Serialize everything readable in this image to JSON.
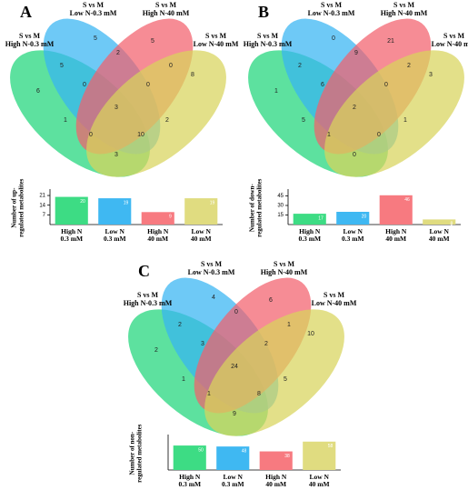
{
  "chart_data": [
    {
      "type": "venn",
      "title": "A",
      "sets": [
        "S vs M\nHigh N-0.3 mM",
        "S vs M\nLow N-0.3 mM",
        "S vs M\nHigh N-40 mM",
        "S vs M\nLow N-40 mM"
      ],
      "colors": [
        "#1ed67a",
        "#36b4f2",
        "#f2606c",
        "#d8d45c"
      ],
      "regions": [
        6,
        5,
        5,
        8,
        5,
        2,
        0,
        0,
        0,
        3,
        1,
        2,
        0,
        10,
        3
      ]
    },
    {
      "type": "bar",
      "ylabel": "Number of up-\nregulated metabolites",
      "categories": [
        "High N\n0.3 mM",
        "Low N\n0.3 mM",
        "High N\n40 mM",
        "Low N\n40 mM"
      ],
      "values": [
        20,
        19,
        9,
        19
      ],
      "colors": [
        "#3ddc84",
        "#3fb8f2",
        "#f77a80",
        "#e0dc80"
      ],
      "ylim": [
        0,
        23
      ],
      "yticks": [
        7,
        14,
        21
      ]
    },
    {
      "type": "venn",
      "title": "B",
      "sets": [
        "S vs M\nHigh N-0.3 mM",
        "S vs M\nLow N-0.3 mM",
        "S vs M\nHigh N-40 mM",
        "S vs M\nLow N-40 mM"
      ],
      "colors": [
        "#1ed67a",
        "#36b4f2",
        "#f2606c",
        "#d8d45c"
      ],
      "regions": [
        1,
        0,
        21,
        3,
        2,
        9,
        2,
        6,
        0,
        2,
        5,
        1,
        1,
        0,
        0
      ]
    },
    {
      "type": "bar",
      "ylabel": "Number of down-\nregulated metabolites",
      "categories": [
        "High N\n0.3 mM",
        "Low N\n0.3 mM",
        "High N\n40 mM",
        "Low N\n40 mM"
      ],
      "values": [
        17,
        20,
        46,
        8
      ],
      "colors": [
        "#3ddc84",
        "#3fb8f2",
        "#f77a80",
        "#e0dc80"
      ],
      "ylim": [
        0,
        50
      ],
      "yticks": [
        15,
        30,
        45
      ]
    },
    {
      "type": "venn",
      "title": "C",
      "sets": [
        "S vs M\nHigh N-0.3 mM",
        "S vs M\nLow N-0.3 mM",
        "S vs M\nHigh N-40 mM",
        "S vs M\nLow N-40 mM"
      ],
      "colors": [
        "#1ed67a",
        "#36b4f2",
        "#f2606c",
        "#d8d45c"
      ],
      "regions": [
        2,
        4,
        6,
        10,
        2,
        0,
        1,
        3,
        2,
        24,
        1,
        5,
        1,
        8,
        9
      ]
    },
    {
      "type": "bar",
      "ylabel": "Number of non-\nregulated metabolites",
      "categories": [
        "High N\n0.3 mM",
        "Low N\n0.3 mM",
        "High N\n40 mM",
        "Low N\n40 mM"
      ],
      "values": [
        50,
        48,
        38,
        58
      ],
      "colors": [
        "#3ddc84",
        "#3fb8f2",
        "#f77a80",
        "#e0dc80"
      ],
      "ylim": [
        0,
        65
      ],
      "yticks": []
    }
  ]
}
